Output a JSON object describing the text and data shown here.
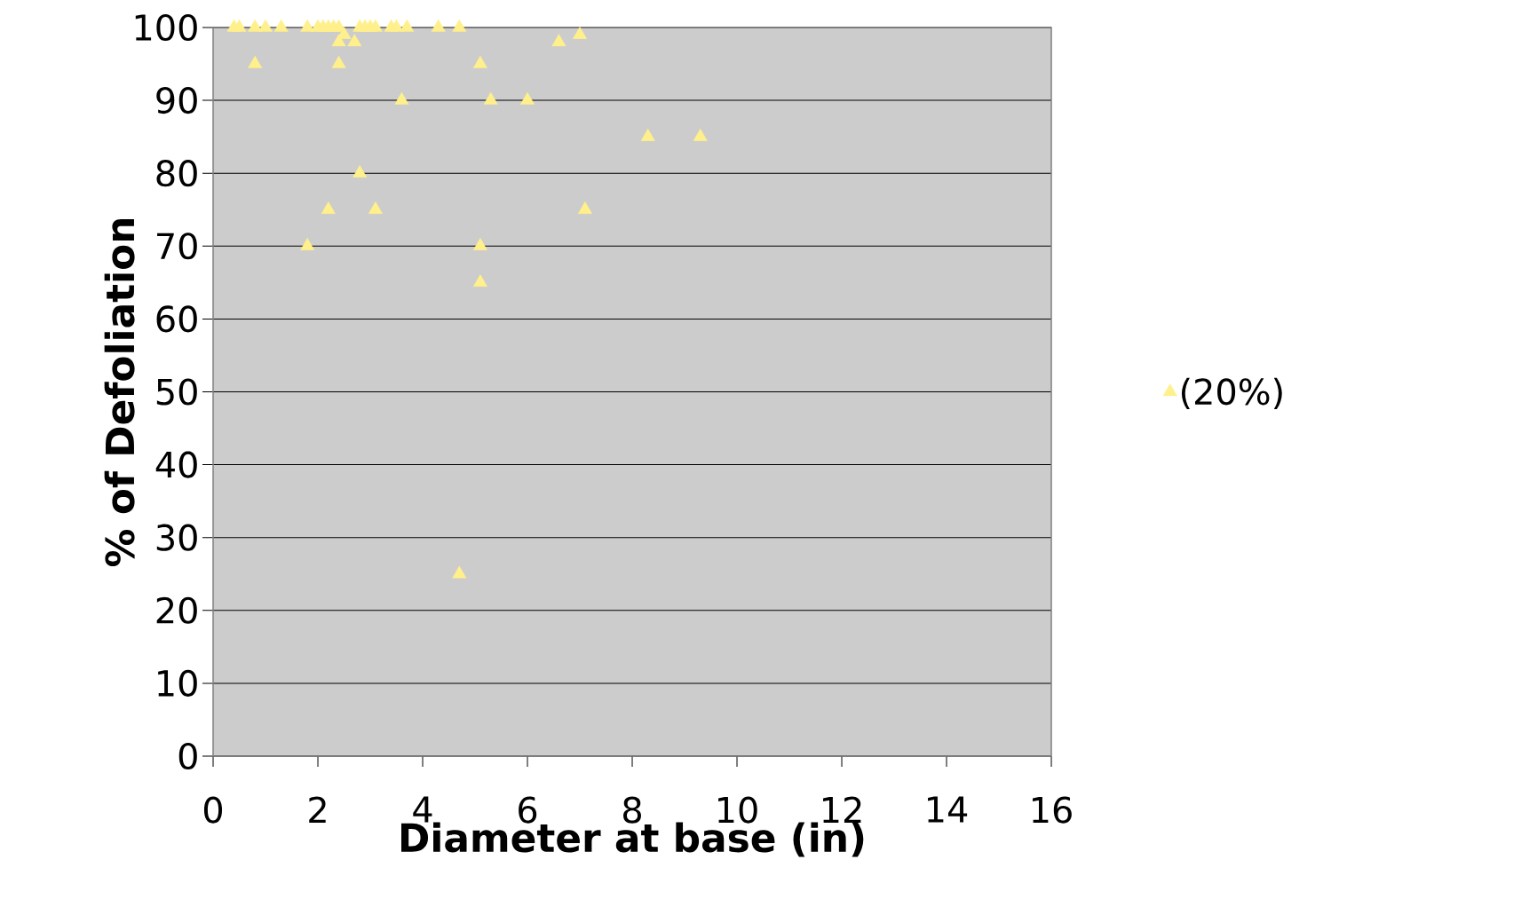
{
  "chart_data": {
    "type": "scatter",
    "xlabel": "Diameter at base (in)",
    "ylabel": "% of Defoliation",
    "series": [
      {
        "name": "(20%)",
        "color": "#fff08c",
        "x": [
          0.4,
          0.5,
          0.8,
          1.0,
          1.3,
          1.8,
          2.0,
          2.1,
          2.2,
          2.3,
          2.4,
          2.8,
          2.9,
          3.0,
          3.1,
          3.4,
          3.5,
          3.7,
          4.3,
          4.7,
          2.5,
          2.4,
          2.7,
          6.6,
          7.0,
          0.8,
          2.4,
          5.1,
          3.6,
          5.3,
          6.0,
          8.3,
          9.3,
          2.8,
          2.2,
          3.1,
          7.1,
          1.8,
          5.1,
          5.1,
          4.7
        ],
        "values": [
          100,
          100,
          100,
          100,
          100,
          100,
          100,
          100,
          100,
          100,
          100,
          100,
          100,
          100,
          100,
          100,
          100,
          100,
          100,
          100,
          99,
          98,
          98,
          98,
          99,
          95,
          95,
          95,
          90,
          90,
          90,
          85,
          85,
          80,
          75,
          75,
          75,
          70,
          70,
          65,
          25
        ]
      }
    ],
    "xlim": [
      0,
      16
    ],
    "ylim": [
      0,
      100
    ],
    "xticks": [
      0,
      2,
      4,
      6,
      8,
      10,
      12,
      14,
      16
    ],
    "yticks": [
      0,
      10,
      20,
      30,
      40,
      50,
      60,
      70,
      80,
      90,
      100
    ],
    "grid": "y",
    "legend": "right",
    "marker": "triangle"
  }
}
